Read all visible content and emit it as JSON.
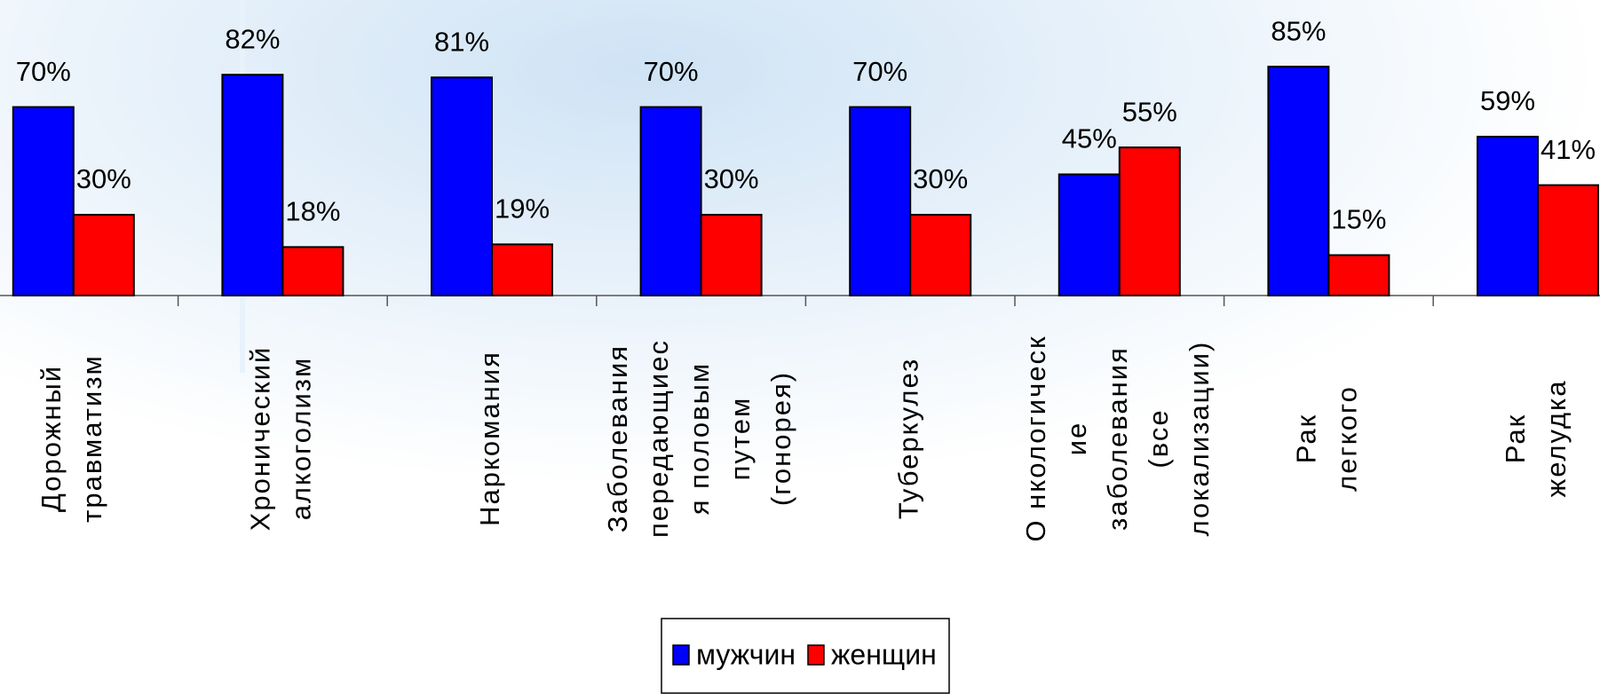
{
  "chart_data": {
    "type": "bar",
    "categories": [
      [
        "Дорожный",
        "травматизм"
      ],
      [
        "Хронический",
        "алкоголизм"
      ],
      [
        "Наркомания"
      ],
      [
        "Заболевания",
        "передающиес",
        "я половым",
        "путем",
        "(гонорея)"
      ],
      [
        "Туберкулез"
      ],
      [
        "О нкологическ",
        "ие",
        "заболевания",
        "(все",
        "локализации)"
      ],
      [
        "Рак",
        "легкого"
      ],
      [
        "Рак",
        "желудка"
      ]
    ],
    "series": [
      {
        "name": "мужчин",
        "color": "#0000ff",
        "values": [
          70,
          82,
          81,
          70,
          70,
          45,
          85,
          59
        ],
        "value_labels": [
          "70%",
          "82%",
          "81%",
          "70%",
          "70%",
          "45%",
          "85%",
          "59%"
        ]
      },
      {
        "name": "женщин",
        "color": "#ff0000",
        "values": [
          30,
          18,
          19,
          30,
          30,
          55,
          15,
          41
        ],
        "value_labels": [
          "30%",
          "18%",
          "19%",
          "30%",
          "30%",
          "55%",
          "15%",
          "41%"
        ]
      }
    ],
    "ylim": [
      0,
      100
    ],
    "legend": "bottom"
  }
}
